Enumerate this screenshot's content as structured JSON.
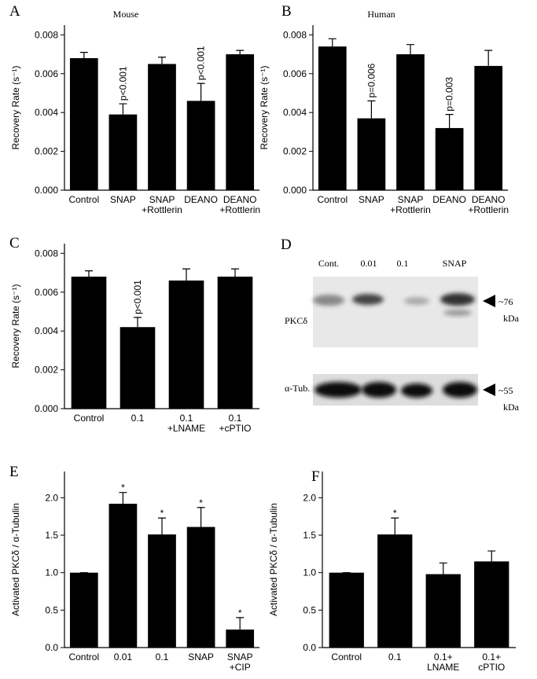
{
  "chart_data": [
    {
      "type": "bar",
      "label": "A",
      "title": "Mouse",
      "ylabel": "Recovery Rate (s⁻¹)",
      "categories": [
        "Control",
        "SNAP",
        "SNAP\n+Rottlerin",
        "DEANO",
        "DEANO\n+Rottlerin"
      ],
      "values": [
        0.0068,
        0.0039,
        0.0065,
        0.0046,
        0.007
      ],
      "errors": [
        0.0003,
        0.00055,
        0.00035,
        0.0009,
        0.0002
      ],
      "value_annotations": [
        null,
        "p<0.001",
        null,
        "p<0.001",
        null
      ],
      "color": "#000000",
      "ylim": [
        0,
        0.0085
      ],
      "yticks": [
        {
          "value": 0,
          "label": "0.000"
        },
        {
          "value": 0.002,
          "label": "0.002"
        },
        {
          "value": 0.004,
          "label": "0.004"
        },
        {
          "value": 0.006,
          "label": "0.006"
        },
        {
          "value": 0.008,
          "label": "0.008"
        }
      ]
    },
    {
      "type": "bar",
      "label": "B",
      "title": "Human",
      "ylabel": "Recovery Rate (s⁻¹)",
      "categories": [
        "Control",
        "SNAP",
        "SNAP\n+Rottlerin",
        "DEANO",
        "DEANO\n+Rottlerin"
      ],
      "values": [
        0.0074,
        0.0037,
        0.007,
        0.0032,
        0.0064
      ],
      "errors": [
        0.0004,
        0.0009,
        0.0005,
        0.0007,
        0.0008
      ],
      "value_annotations": [
        null,
        "p=0.006",
        null,
        "p=0.003",
        null
      ],
      "color": "#000000",
      "ylim": [
        0,
        0.0085
      ],
      "yticks": [
        {
          "value": 0,
          "label": "0.000"
        },
        {
          "value": 0.002,
          "label": "0.002"
        },
        {
          "value": 0.004,
          "label": "0.004"
        },
        {
          "value": 0.006,
          "label": "0.006"
        },
        {
          "value": 0.008,
          "label": "0.008"
        }
      ]
    },
    {
      "type": "bar",
      "label": "C",
      "ylabel": "Recovery Rate (s⁻¹)",
      "categories": [
        "Control",
        "0.1",
        "0.1\n+LNAME",
        "0.1\n+cPTIO"
      ],
      "values": [
        0.0068,
        0.0042,
        0.0066,
        0.0068
      ],
      "errors": [
        0.0003,
        0.0005,
        0.0006,
        0.0004
      ],
      "value_annotations": [
        null,
        "p<0.001",
        null,
        null
      ],
      "color": "#000000",
      "ylim": [
        0,
        0.0085
      ],
      "yticks": [
        {
          "value": 0,
          "label": "0.000"
        },
        {
          "value": 0.002,
          "label": "0.002"
        },
        {
          "value": 0.004,
          "label": "0.004"
        },
        {
          "value": 0.006,
          "label": "0.006"
        },
        {
          "value": 0.008,
          "label": "0.008"
        }
      ]
    },
    {
      "type": "bar",
      "label": "E",
      "ylabel": "Activated PKCδ / α-Tubulin",
      "categories": [
        "Control",
        "0.01",
        "0.1",
        "SNAP",
        "SNAP\n+CIP"
      ],
      "values": [
        1.0,
        1.92,
        1.51,
        1.61,
        0.24
      ],
      "errors": [
        0,
        0.15,
        0.22,
        0.26,
        0.16
      ],
      "value_annotations": [
        null,
        "*",
        "*",
        "*",
        "*"
      ],
      "color": "#000000",
      "ylim": [
        0,
        2.35
      ],
      "yticks": [
        {
          "value": 0,
          "label": "0.0"
        },
        0.5,
        {
          "value": 1,
          "label": "1.0"
        },
        1.5,
        {
          "value": 2,
          "label": "2.0"
        }
      ]
    },
    {
      "type": "bar",
      "label": "F",
      "ylabel": "Activated PKCδ / α-Tubulin",
      "categories": [
        "Control",
        "0.1",
        "0.1+\nLNAME",
        "0.1+\ncPTIO"
      ],
      "values": [
        1.0,
        1.51,
        0.98,
        1.15
      ],
      "errors": [
        0,
        0.22,
        0.15,
        0.14
      ],
      "value_annotations": [
        null,
        "*",
        null,
        null
      ],
      "color": "#000000",
      "ylim": [
        0,
        2.35
      ],
      "yticks": [
        {
          "value": 0,
          "label": "0.0"
        },
        0.5,
        {
          "value": 1,
          "label": "1.0"
        },
        1.5,
        {
          "value": 2,
          "label": "2.0"
        }
      ]
    }
  ],
  "blot": {
    "label": "D",
    "lanes": [
      "Cont.",
      "0.01",
      "0.1",
      "SNAP"
    ],
    "rows": [
      {
        "name": "PKCδ",
        "marker": "~76",
        "unit": "kDa"
      },
      {
        "name": "α-Tub.",
        "marker": "~55",
        "unit": "kDa"
      }
    ]
  }
}
